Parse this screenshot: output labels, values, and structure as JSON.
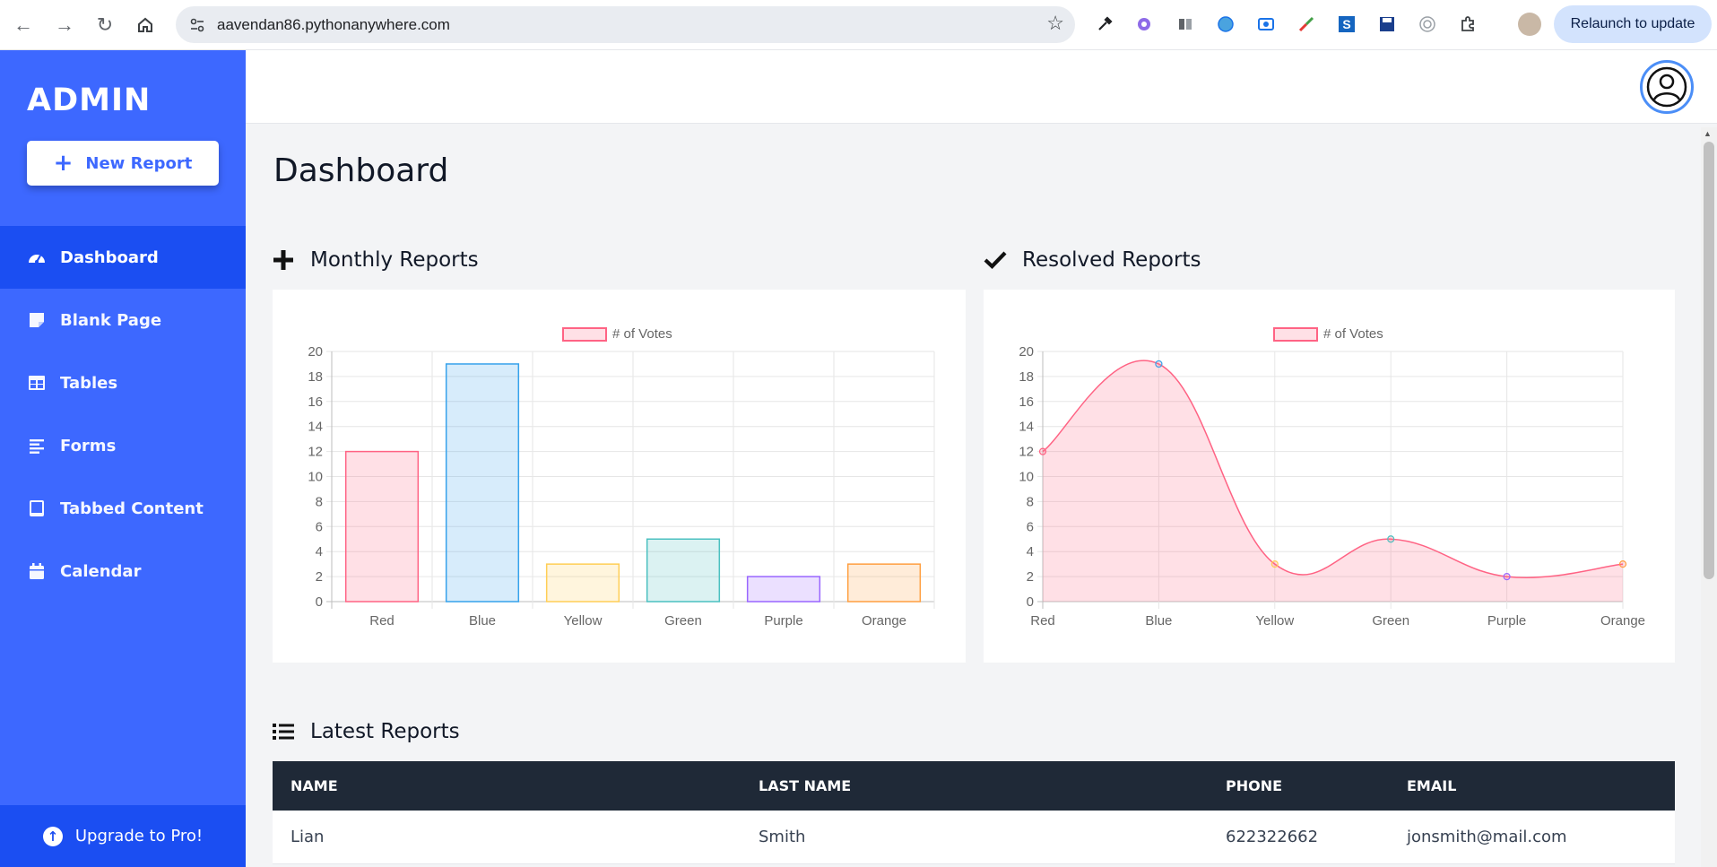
{
  "browser": {
    "url": "aavendan86.pythonanywhere.com",
    "relaunch_label": "Relaunch to update"
  },
  "sidebar": {
    "brand": "ADMIN",
    "new_report_label": "New Report",
    "items": [
      {
        "label": "Dashboard",
        "icon": "gauge-icon",
        "active": true
      },
      {
        "label": "Blank Page",
        "icon": "sticky-note-icon",
        "active": false
      },
      {
        "label": "Tables",
        "icon": "table-icon",
        "active": false
      },
      {
        "label": "Forms",
        "icon": "align-left-icon",
        "active": false
      },
      {
        "label": "Tabbed Content",
        "icon": "tablet-icon",
        "active": false
      },
      {
        "label": "Calendar",
        "icon": "calendar-icon",
        "active": false
      }
    ],
    "upgrade_label": "Upgrade to Pro!"
  },
  "main": {
    "page_title": "Dashboard",
    "monthly_title": "Monthly Reports",
    "resolved_title": "Resolved Reports",
    "latest_title": "Latest Reports"
  },
  "colors": {
    "sidebar": "#3d68ff",
    "sidebar_active": "#1b4ef2",
    "table_header": "#1f2937"
  },
  "chart_data": [
    {
      "type": "bar",
      "categories": [
        "Red",
        "Blue",
        "Yellow",
        "Green",
        "Purple",
        "Orange"
      ],
      "series": [
        {
          "name": "# of Votes",
          "values": [
            12,
            19,
            3,
            5,
            2,
            3
          ]
        }
      ],
      "ylim": [
        0,
        20
      ],
      "yticks": [
        0,
        2,
        4,
        6,
        8,
        10,
        12,
        14,
        16,
        18,
        20
      ],
      "legend": "top",
      "grid": true,
      "fill_colors": [
        "rgba(255,99,132,0.2)",
        "rgba(54,162,235,0.2)",
        "rgba(255,206,86,0.2)",
        "rgba(75,192,192,0.2)",
        "rgba(153,102,255,0.2)",
        "rgba(255,159,64,0.2)"
      ],
      "border_colors": [
        "#ff6384",
        "#36a2eb",
        "#ffce56",
        "#4bc0c0",
        "#9966ff",
        "#ff9f40"
      ]
    },
    {
      "type": "area",
      "categories": [
        "Red",
        "Blue",
        "Yellow",
        "Green",
        "Purple",
        "Orange"
      ],
      "series": [
        {
          "name": "# of Votes",
          "values": [
            12,
            19,
            3,
            5,
            2,
            3
          ]
        }
      ],
      "ylim": [
        0,
        20
      ],
      "yticks": [
        0,
        2,
        4,
        6,
        8,
        10,
        12,
        14,
        16,
        18,
        20
      ],
      "legend": "top",
      "grid": true,
      "fill_color": "rgba(255,99,132,0.2)",
      "line_color": "#ff6384",
      "point_colors": [
        "#ff6384",
        "#36a2eb",
        "#ffce56",
        "#4bc0c0",
        "#9966ff",
        "#ff9f40"
      ]
    }
  ],
  "table": {
    "columns": [
      "NAME",
      "LAST NAME",
      "PHONE",
      "EMAIL"
    ],
    "rows": [
      [
        "Lian",
        "Smith",
        "622322662",
        "jonsmith@mail.com"
      ]
    ]
  }
}
